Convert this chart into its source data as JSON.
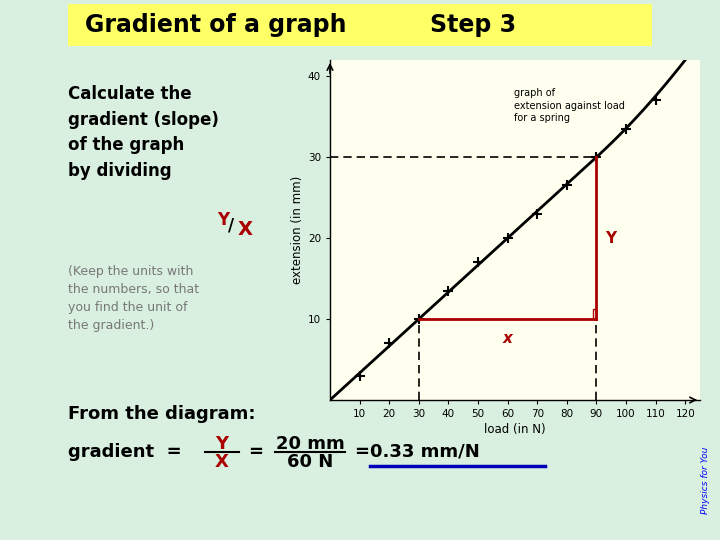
{
  "bg_color": "#d9f0e0",
  "title_bg": "#ffff66",
  "title_text": "Gradient of a graph",
  "step_text": "Step 3",
  "title_fontsize": 17,
  "step_fontsize": 17,
  "main_text": "Calculate the\ngradient (slope)\nof the graph\nby dividing ",
  "keep_text": "(Keep the units with\nthe numbers, so that\nyou find the unit of\nthe gradient.)",
  "from_text": "From the diagram:",
  "graph_bg": "#fffff0",
  "graph_title": "graph of\nextension against load\nfor a spring",
  "graph_xlabel": "load (in N)",
  "graph_ylabel": "extension (in mm)",
  "x_ticks": [
    10,
    20,
    30,
    40,
    50,
    60,
    70,
    80,
    90,
    100,
    110,
    120
  ],
  "y_ticks": [
    10,
    20,
    30,
    40
  ],
  "data_points_x": [
    10,
    20,
    30,
    40,
    50,
    60,
    70,
    80,
    90,
    100,
    110
  ],
  "data_points_y": [
    3,
    7,
    10,
    13.5,
    17,
    20,
    23,
    26.5,
    30,
    33.5,
    37
  ],
  "triangle_x1": 30,
  "triangle_x2": 90,
  "triangle_y1": 10,
  "triangle_y2": 30,
  "red_color": "#aa0000",
  "blue_color": "#0000bb",
  "line_color": "#000000"
}
